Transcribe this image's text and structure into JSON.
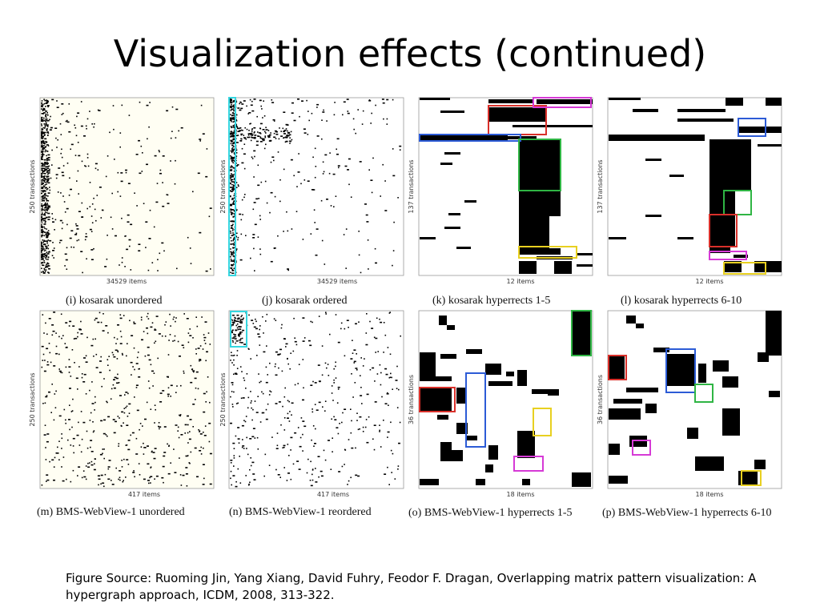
{
  "slide": {
    "title": "Visualization effects (continued)",
    "source": "Figure Source: Ruoming Jin, Yang Xiang, David Fuhry, Feodor F. Dragan, Overlapping matrix pattern visualization: A hypergraph approach, ICDM, 2008, 313-322."
  },
  "colors": {
    "red": "#d9302a",
    "blue": "#2c5bd6",
    "green": "#2fb544",
    "yellow": "#e8d020",
    "magenta": "#d63ad6",
    "cyan": "#35d6e0",
    "panel_bg": "#fffef3"
  },
  "panels": [
    {
      "id": "i",
      "caption": "(i)  kosarak unordered",
      "xlabel": "34529 items",
      "ylabel": "250 transactions"
    },
    {
      "id": "j",
      "caption": "(j)  kosarak ordered",
      "xlabel": "34529 items",
      "ylabel": "250 transactions"
    },
    {
      "id": "k",
      "caption": "(k)  kosarak hyperrects 1-5",
      "xlabel": "12 items",
      "ylabel": "137 transactions"
    },
    {
      "id": "l",
      "caption": "(l)  kosarak hyperrects 6-10",
      "xlabel": "12 items",
      "ylabel": "137 transactions"
    },
    {
      "id": "m",
      "caption": "(m)  BMS-WebView-1 unordered",
      "xlabel": "417 items",
      "ylabel": "250 transactions"
    },
    {
      "id": "n",
      "caption": "(n)  BMS-WebView-1 reordered",
      "xlabel": "417 items",
      "ylabel": "250 transactions"
    },
    {
      "id": "o",
      "caption": "(o)  BMS-WebView-1  hyperrects  1-5",
      "xlabel": "18 items",
      "ylabel": "36 transactions"
    },
    {
      "id": "p",
      "caption": "(p)  BMS-WebView-1  hyperrects  6-10",
      "xlabel": "18 items",
      "ylabel": "36 transactions"
    }
  ]
}
